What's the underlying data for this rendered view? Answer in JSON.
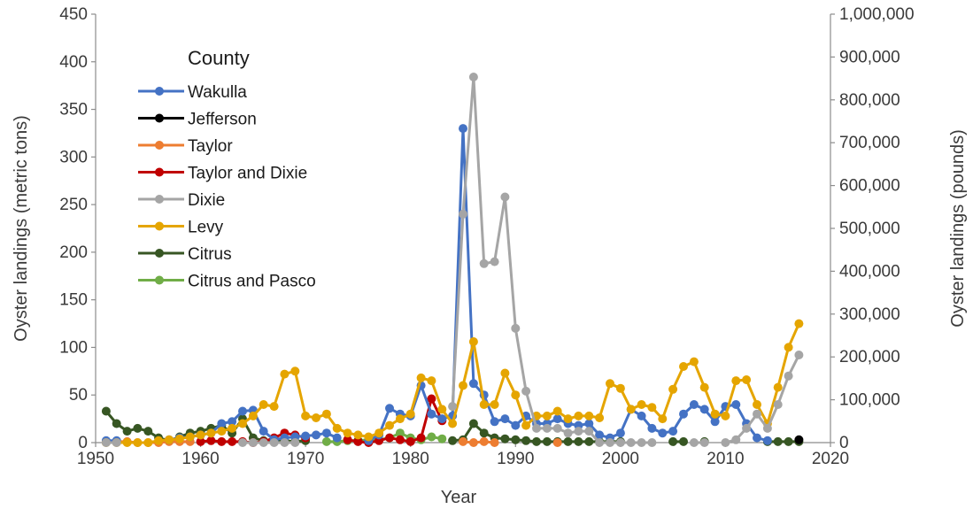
{
  "chart_data": {
    "type": "line",
    "x_label": "Year",
    "y_label_left": "Oyster landings (metric tons)",
    "y_label_right": "Oyster landings (pounds)",
    "x_range": [
      1950,
      2020
    ],
    "x_ticks": [
      1950,
      1960,
      1970,
      1980,
      1990,
      2000,
      2010,
      2020
    ],
    "x_tick_labels": [
      "1950",
      "1960",
      "1970",
      "1980",
      "1990",
      "2000",
      "2010",
      "2020"
    ],
    "y_left_range": [
      0,
      450
    ],
    "y_left_ticks": [
      0,
      50,
      100,
      150,
      200,
      250,
      300,
      350,
      400,
      450
    ],
    "y_left_tick_labels": [
      "0",
      "50",
      "100",
      "150",
      "200",
      "250",
      "300",
      "350",
      "400",
      "450"
    ],
    "y_right_range": [
      0,
      1000000
    ],
    "y_right_ticks": [
      0,
      100000,
      200000,
      300000,
      400000,
      500000,
      600000,
      700000,
      800000,
      900000,
      1000000
    ],
    "y_right_tick_labels": [
      "0",
      "100,000",
      "200,000",
      "300,000",
      "400,000",
      "500,000",
      "600,000",
      "700,000",
      "800,000",
      "900,000",
      "1,000,000"
    ],
    "grid": false,
    "legend": {
      "title": "County",
      "position": "top-left"
    },
    "series": [
      {
        "name": "Wakulla",
        "color": "#4472C4",
        "points": [
          [
            1951,
            2
          ],
          [
            1952,
            2
          ],
          [
            1957,
            3
          ],
          [
            1958,
            5
          ],
          [
            1959,
            6
          ],
          [
            1960,
            8
          ],
          [
            1961,
            10
          ],
          [
            1962,
            20
          ],
          [
            1963,
            22
          ],
          [
            1964,
            33
          ],
          [
            1965,
            34
          ],
          [
            1966,
            12
          ],
          [
            1967,
            3
          ],
          [
            1968,
            5
          ],
          [
            1969,
            6
          ],
          [
            1970,
            7
          ],
          [
            1971,
            8
          ],
          [
            1972,
            10
          ],
          [
            1973,
            5
          ],
          [
            1976,
            2
          ],
          [
            1977,
            8
          ],
          [
            1978,
            36
          ],
          [
            1979,
            30
          ],
          [
            1980,
            28
          ],
          [
            1981,
            60
          ],
          [
            1982,
            30
          ],
          [
            1983,
            25
          ],
          [
            1984,
            28
          ],
          [
            1985,
            330
          ],
          [
            1986,
            62
          ],
          [
            1987,
            50
          ],
          [
            1988,
            22
          ],
          [
            1989,
            25
          ],
          [
            1990,
            18
          ],
          [
            1991,
            28
          ],
          [
            1992,
            20
          ],
          [
            1993,
            20
          ],
          [
            1994,
            25
          ],
          [
            1995,
            20
          ],
          [
            1996,
            18
          ],
          [
            1997,
            20
          ],
          [
            1998,
            8
          ],
          [
            1999,
            5
          ],
          [
            2000,
            10
          ],
          [
            2001,
            35
          ],
          [
            2002,
            28
          ],
          [
            2003,
            15
          ],
          [
            2004,
            10
          ],
          [
            2005,
            12
          ],
          [
            2006,
            30
          ],
          [
            2007,
            40
          ],
          [
            2008,
            35
          ],
          [
            2009,
            22
          ],
          [
            2010,
            38
          ],
          [
            2011,
            40
          ],
          [
            2012,
            20
          ],
          [
            2013,
            5
          ],
          [
            2014,
            2
          ]
        ]
      },
      {
        "name": "Jefferson",
        "color": "#000000",
        "points": [
          [
            2017,
            3
          ]
        ]
      },
      {
        "name": "Taylor",
        "color": "#ED7D31",
        "points": [
          [
            1951,
            1
          ],
          [
            1952,
            1
          ],
          [
            1953,
            1
          ],
          [
            1954,
            0
          ],
          [
            1955,
            0
          ],
          [
            1956,
            0
          ],
          [
            1957,
            1
          ],
          [
            1958,
            1
          ],
          [
            1959,
            1
          ],
          [
            1985,
            1
          ],
          [
            1986,
            0
          ],
          [
            1987,
            1
          ],
          [
            1988,
            0
          ],
          [
            1994,
            0
          ]
        ]
      },
      {
        "name": "Taylor and Dixie",
        "color": "#C00000",
        "points": [
          [
            1960,
            1
          ],
          [
            1961,
            2
          ],
          [
            1962,
            1
          ],
          [
            1963,
            1
          ],
          [
            1964,
            1
          ],
          [
            1965,
            0
          ],
          [
            1966,
            1
          ],
          [
            1967,
            5
          ],
          [
            1968,
            10
          ],
          [
            1969,
            8
          ],
          [
            1970,
            5
          ],
          [
            1974,
            3
          ],
          [
            1975,
            1
          ],
          [
            1976,
            0
          ],
          [
            1977,
            2
          ],
          [
            1978,
            5
          ],
          [
            1979,
            3
          ],
          [
            1980,
            1
          ],
          [
            1981,
            5
          ],
          [
            1982,
            46
          ],
          [
            1983,
            23
          ]
        ]
      },
      {
        "name": "Dixie",
        "color": "#A5A5A5",
        "points": [
          [
            1951,
            0
          ],
          [
            1952,
            0
          ],
          [
            1964,
            0
          ],
          [
            1965,
            0
          ],
          [
            1966,
            0
          ],
          [
            1967,
            0
          ],
          [
            1968,
            0
          ],
          [
            1969,
            0
          ],
          [
            1984,
            38
          ],
          [
            1985,
            240
          ],
          [
            1986,
            384
          ],
          [
            1987,
            188
          ],
          [
            1988,
            190
          ],
          [
            1989,
            258
          ],
          [
            1990,
            120
          ],
          [
            1991,
            54
          ],
          [
            1992,
            15
          ],
          [
            1993,
            15
          ],
          [
            1994,
            15
          ],
          [
            1995,
            10
          ],
          [
            1996,
            12
          ],
          [
            1997,
            12
          ],
          [
            1998,
            0
          ],
          [
            1999,
            0
          ],
          [
            2000,
            0
          ],
          [
            2001,
            0
          ],
          [
            2002,
            0
          ],
          [
            2003,
            0
          ],
          [
            2007,
            0
          ],
          [
            2008,
            0
          ],
          [
            2010,
            0
          ],
          [
            2011,
            3
          ],
          [
            2012,
            15
          ],
          [
            2013,
            30
          ],
          [
            2014,
            15
          ],
          [
            2015,
            40
          ],
          [
            2016,
            70
          ],
          [
            2017,
            92
          ]
        ]
      },
      {
        "name": "Levy",
        "color": "#E5A500",
        "points": [
          [
            1951,
            0
          ],
          [
            1952,
            0
          ],
          [
            1953,
            0
          ],
          [
            1954,
            0
          ],
          [
            1955,
            0
          ],
          [
            1956,
            2
          ],
          [
            1957,
            3
          ],
          [
            1958,
            4
          ],
          [
            1959,
            6
          ],
          [
            1960,
            8
          ],
          [
            1961,
            10
          ],
          [
            1962,
            12
          ],
          [
            1963,
            15
          ],
          [
            1964,
            20
          ],
          [
            1965,
            28
          ],
          [
            1966,
            40
          ],
          [
            1967,
            38
          ],
          [
            1968,
            72
          ],
          [
            1969,
            75
          ],
          [
            1970,
            28
          ],
          [
            1971,
            26
          ],
          [
            1972,
            30
          ],
          [
            1973,
            15
          ],
          [
            1974,
            10
          ],
          [
            1975,
            8
          ],
          [
            1976,
            6
          ],
          [
            1977,
            10
          ],
          [
            1978,
            18
          ],
          [
            1979,
            25
          ],
          [
            1980,
            30
          ],
          [
            1981,
            68
          ],
          [
            1982,
            65
          ],
          [
            1983,
            35
          ],
          [
            1984,
            20
          ],
          [
            1985,
            60
          ],
          [
            1986,
            106
          ],
          [
            1987,
            40
          ],
          [
            1988,
            40
          ],
          [
            1989,
            73
          ],
          [
            1990,
            50
          ],
          [
            1991,
            18
          ],
          [
            1992,
            28
          ],
          [
            1993,
            28
          ],
          [
            1994,
            33
          ],
          [
            1995,
            25
          ],
          [
            1996,
            28
          ],
          [
            1997,
            28
          ],
          [
            1998,
            26
          ],
          [
            1999,
            62
          ],
          [
            2000,
            57
          ],
          [
            2001,
            35
          ],
          [
            2002,
            40
          ],
          [
            2003,
            37
          ],
          [
            2004,
            25
          ],
          [
            2005,
            56
          ],
          [
            2006,
            80
          ],
          [
            2007,
            85
          ],
          [
            2008,
            58
          ],
          [
            2009,
            30
          ],
          [
            2010,
            28
          ],
          [
            2011,
            65
          ],
          [
            2012,
            66
          ],
          [
            2013,
            40
          ],
          [
            2014,
            20
          ],
          [
            2015,
            58
          ],
          [
            2016,
            100
          ],
          [
            2017,
            125
          ]
        ]
      },
      {
        "name": "Citrus",
        "color": "#375623",
        "points": [
          [
            1951,
            33
          ],
          [
            1952,
            20
          ],
          [
            1953,
            12
          ],
          [
            1954,
            15
          ],
          [
            1955,
            12
          ],
          [
            1956,
            5
          ],
          [
            1957,
            2
          ],
          [
            1958,
            6
          ],
          [
            1959,
            10
          ],
          [
            1960,
            12
          ],
          [
            1961,
            15
          ],
          [
            1962,
            18
          ],
          [
            1963,
            10
          ],
          [
            1964,
            25
          ],
          [
            1965,
            5
          ],
          [
            1966,
            2
          ],
          [
            1967,
            3
          ],
          [
            1968,
            2
          ],
          [
            1969,
            1
          ],
          [
            1970,
            2
          ],
          [
            1975,
            2
          ],
          [
            1984,
            2
          ],
          [
            1985,
            3
          ],
          [
            1986,
            20
          ],
          [
            1987,
            10
          ],
          [
            1988,
            5
          ],
          [
            1989,
            4
          ],
          [
            1990,
            3
          ],
          [
            1991,
            2
          ],
          [
            1992,
            1
          ],
          [
            1993,
            1
          ],
          [
            1994,
            1
          ],
          [
            1995,
            1
          ],
          [
            1996,
            1
          ],
          [
            1997,
            1
          ],
          [
            1998,
            1
          ],
          [
            1999,
            1
          ],
          [
            2000,
            1
          ],
          [
            2005,
            1
          ],
          [
            2006,
            1
          ],
          [
            2008,
            1
          ],
          [
            2014,
            1
          ],
          [
            2015,
            1
          ],
          [
            2016,
            1
          ],
          [
            2017,
            1
          ]
        ]
      },
      {
        "name": "Citrus and Pasco",
        "color": "#70AD47",
        "points": [
          [
            1972,
            1
          ],
          [
            1973,
            1
          ],
          [
            1974,
            2
          ],
          [
            1975,
            2
          ],
          [
            1976,
            3
          ],
          [
            1977,
            3
          ],
          [
            1978,
            5
          ],
          [
            1979,
            10
          ],
          [
            1980,
            5
          ],
          [
            1981,
            3
          ],
          [
            1982,
            6
          ],
          [
            1983,
            4
          ]
        ]
      }
    ]
  }
}
